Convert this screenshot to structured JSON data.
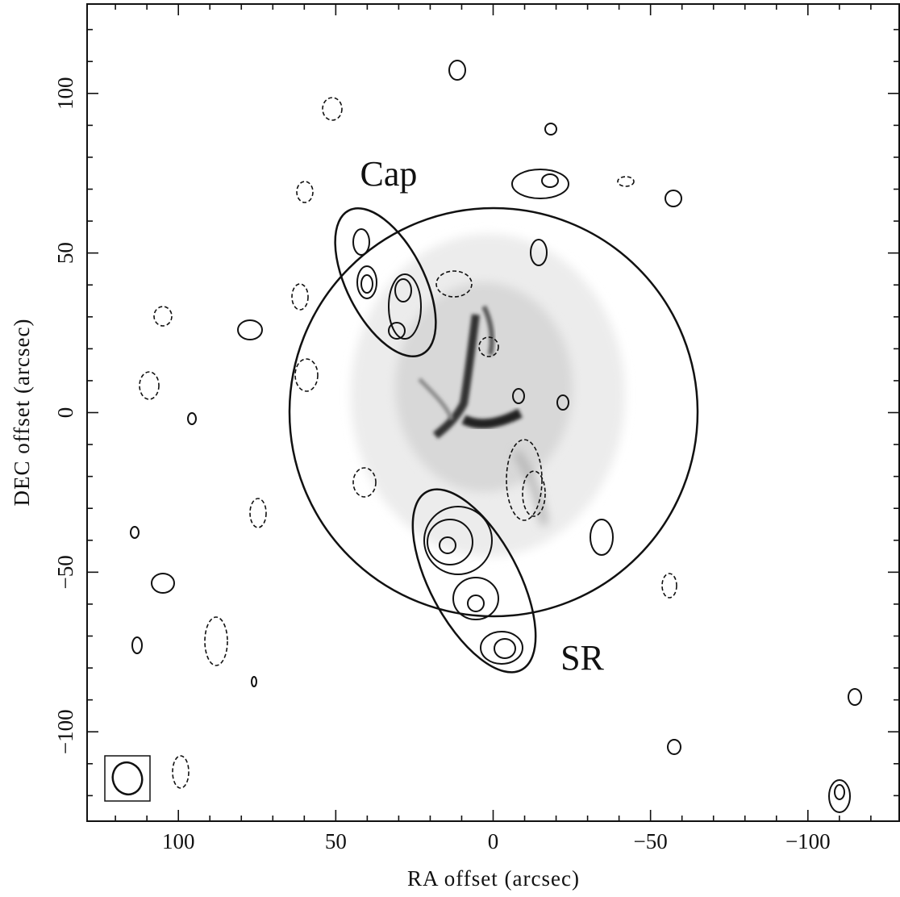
{
  "chart_data": {
    "type": "contour-map",
    "x_label": "RA offset (arcsec)",
    "y_label": "DEC offset (arcsec)",
    "xlim": [
      129,
      -129
    ],
    "ylim": [
      -128,
      128
    ],
    "xticks": [
      100,
      50,
      0,
      {
        "value": -50,
        "label": "−50"
      },
      {
        "value": -100,
        "label": "−100"
      }
    ],
    "yticks": [
      {
        "value": -100,
        "label": "−100"
      },
      {
        "value": -50,
        "label": "−50"
      },
      0,
      50,
      100
    ],
    "minor_per_major": 5,
    "annotations": [
      "Cap",
      "SR"
    ]
  }
}
